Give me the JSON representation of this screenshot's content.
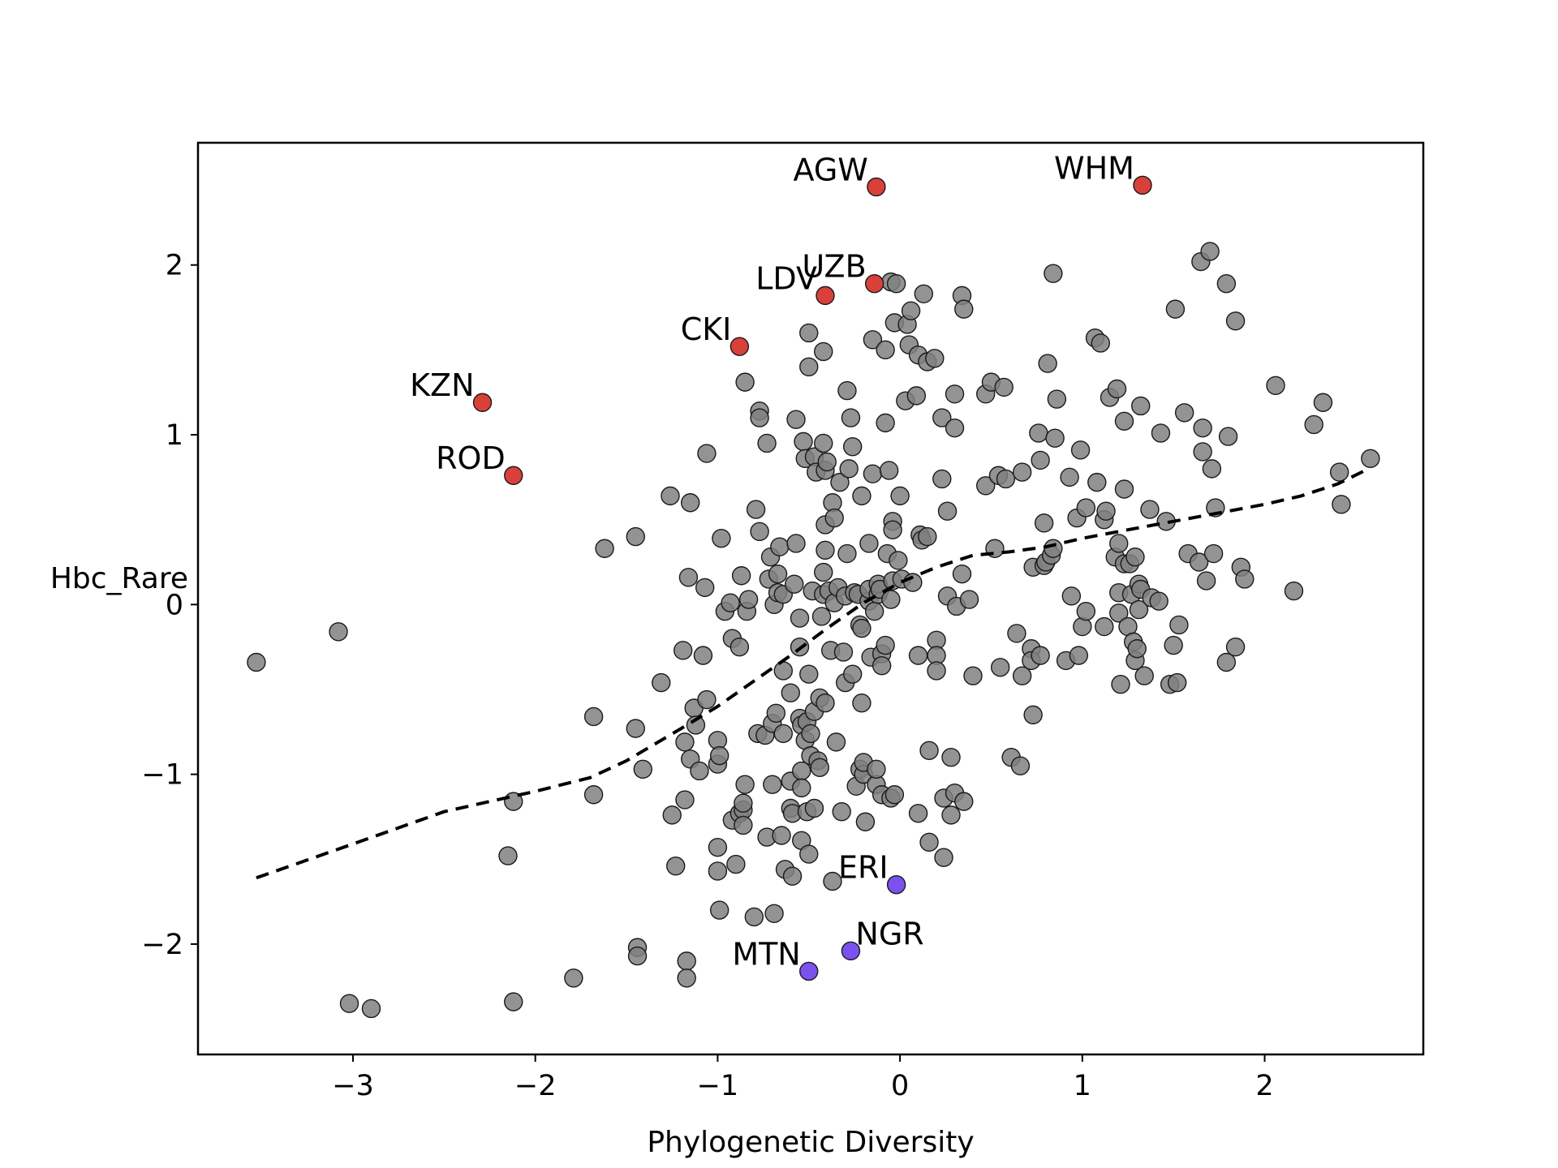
{
  "chart_data": {
    "type": "scatter",
    "xlabel": "Phylogenetic Diversity",
    "ylabel": "Hbc_Rare",
    "xlim": [
      -3.85,
      2.87
    ],
    "ylim": [
      -2.65,
      2.72
    ],
    "xticks": [
      -3,
      -2,
      -1,
      0,
      1,
      2
    ],
    "yticks": [
      -2,
      -1,
      0,
      1,
      2
    ],
    "xtick_labels": [
      "−3",
      "−2",
      "−1",
      "0",
      "1",
      "2"
    ],
    "ytick_labels": [
      "−2",
      "−1",
      "0",
      "1",
      "2"
    ],
    "grid": false,
    "legend": "none",
    "colors": {
      "background_points": "#808080",
      "high_points": "#d9403a",
      "low_points": "#7b52f0",
      "trend_line": "#000000",
      "point_edge": "#1a1a1a"
    },
    "highlighted": [
      {
        "label": "AGW",
        "x": -0.13,
        "y": 2.46,
        "group": "high"
      },
      {
        "label": "WHM",
        "x": 1.33,
        "y": 2.47,
        "group": "high"
      },
      {
        "label": "UZB",
        "x": -0.14,
        "y": 1.89,
        "group": "high"
      },
      {
        "label": "LDV",
        "x": -0.41,
        "y": 1.82,
        "group": "high"
      },
      {
        "label": "CKI",
        "x": -0.88,
        "y": 1.52,
        "group": "high"
      },
      {
        "label": "KZN",
        "x": -2.29,
        "y": 1.19,
        "group": "high"
      },
      {
        "label": "ROD",
        "x": -2.12,
        "y": 0.76,
        "group": "high"
      },
      {
        "label": "ERI",
        "x": -0.02,
        "y": -1.65,
        "group": "low"
      },
      {
        "label": "NGR",
        "x": -0.27,
        "y": -2.04,
        "group": "low"
      },
      {
        "label": "MTN",
        "x": -0.5,
        "y": -2.16,
        "group": "low"
      }
    ],
    "trend": {
      "style": "dashed",
      "x": [
        -3.53,
        -3.0,
        -2.5,
        -2.0,
        -1.7,
        -1.5,
        -1.2,
        -1.0,
        -0.8,
        -0.6,
        -0.4,
        -0.2,
        0.0,
        0.2,
        0.4,
        0.6,
        0.8,
        1.0,
        1.2,
        1.4,
        1.6,
        1.8,
        2.0,
        2.2,
        2.4,
        2.57
      ],
      "y": [
        -1.61,
        -1.41,
        -1.22,
        -1.1,
        -1.02,
        -0.92,
        -0.73,
        -0.6,
        -0.45,
        -0.3,
        -0.14,
        0.01,
        0.13,
        0.22,
        0.29,
        0.31,
        0.34,
        0.39,
        0.43,
        0.47,
        0.51,
        0.55,
        0.59,
        0.64,
        0.71,
        0.8
      ]
    },
    "points": [
      [
        -3.53,
        -0.34
      ],
      [
        -3.08,
        -0.16
      ],
      [
        -3.02,
        -2.35
      ],
      [
        -2.9,
        -2.38
      ],
      [
        -2.12,
        -2.34
      ],
      [
        -2.15,
        -1.48
      ],
      [
        -2.12,
        -1.16
      ],
      [
        -1.79,
        -2.2
      ],
      [
        -1.68,
        -1.12
      ],
      [
        -1.68,
        -0.66
      ],
      [
        -1.62,
        0.33
      ],
      [
        -1.45,
        0.4
      ],
      [
        -1.45,
        -0.73
      ],
      [
        -1.44,
        -2.02
      ],
      [
        -1.44,
        -2.07
      ],
      [
        -1.41,
        -0.97
      ],
      [
        -1.31,
        -0.46
      ],
      [
        -1.26,
        0.64
      ],
      [
        -1.25,
        -1.24
      ],
      [
        -1.23,
        -1.54
      ],
      [
        -1.19,
        -0.27
      ],
      [
        -1.18,
        -0.81
      ],
      [
        -1.18,
        -1.15
      ],
      [
        -1.17,
        -2.1
      ],
      [
        -1.17,
        -2.2
      ],
      [
        -1.16,
        0.16
      ],
      [
        -1.15,
        0.6
      ],
      [
        -1.15,
        -0.91
      ],
      [
        -1.13,
        -0.61
      ],
      [
        -1.12,
        -0.71
      ],
      [
        -1.1,
        -0.98
      ],
      [
        -1.08,
        -0.3
      ],
      [
        -1.07,
        0.1
      ],
      [
        -1.06,
        -0.56
      ],
      [
        -1.06,
        0.89
      ],
      [
        -1.0,
        -0.8
      ],
      [
        -1.0,
        -0.94
      ],
      [
        -0.99,
        -0.89
      ],
      [
        -1.0,
        -1.43
      ],
      [
        -1.0,
        -1.57
      ],
      [
        -0.99,
        -1.8
      ],
      [
        -0.98,
        0.39
      ],
      [
        -0.96,
        -0.04
      ],
      [
        -0.93,
        0.01
      ],
      [
        -0.92,
        -1.27
      ],
      [
        -0.92,
        -0.2
      ],
      [
        -0.9,
        -1.53
      ],
      [
        -0.88,
        -1.23
      ],
      [
        -0.88,
        -0.25
      ],
      [
        -0.87,
        0.17
      ],
      [
        -0.86,
        -1.21
      ],
      [
        -0.86,
        -1.3
      ],
      [
        -0.86,
        -1.17
      ],
      [
        -0.85,
        1.31
      ],
      [
        -0.85,
        -1.06
      ],
      [
        -0.84,
        -0.04
      ],
      [
        -0.83,
        0.03
      ],
      [
        -0.8,
        -1.84
      ],
      [
        -0.79,
        0.56
      ],
      [
        -0.78,
        -0.76
      ],
      [
        -0.77,
        1.14
      ],
      [
        -0.77,
        0.43
      ],
      [
        -0.77,
        1.1
      ],
      [
        -0.74,
        -0.77
      ],
      [
        -0.73,
        0.95
      ],
      [
        -0.73,
        -1.37
      ],
      [
        -0.72,
        0.15
      ],
      [
        -0.71,
        0.28
      ],
      [
        -0.7,
        -1.06
      ],
      [
        -0.7,
        -0.7
      ],
      [
        -0.69,
        -1.82
      ],
      [
        -0.69,
        0.0
      ],
      [
        -0.68,
        -0.64
      ],
      [
        -0.67,
        0.07
      ],
      [
        -0.67,
        0.18
      ],
      [
        -0.66,
        0.34
      ],
      [
        -0.65,
        -1.36
      ],
      [
        -0.64,
        -0.39
      ],
      [
        -0.64,
        0.06
      ],
      [
        -0.64,
        -0.76
      ],
      [
        -0.63,
        -1.56
      ],
      [
        -0.6,
        -0.52
      ],
      [
        -0.6,
        -1.04
      ],
      [
        -0.6,
        -1.2
      ],
      [
        -0.59,
        -1.23
      ],
      [
        -0.59,
        -1.6
      ],
      [
        -0.58,
        0.12
      ],
      [
        -0.57,
        1.09
      ],
      [
        -0.57,
        0.36
      ],
      [
        -0.55,
        -0.25
      ],
      [
        -0.55,
        -0.08
      ],
      [
        -0.55,
        -0.67
      ],
      [
        -0.54,
        -0.71
      ],
      [
        -0.54,
        -0.98
      ],
      [
        -0.54,
        -1.08
      ],
      [
        -0.54,
        -1.39
      ],
      [
        -0.53,
        0.96
      ],
      [
        -0.52,
        0.86
      ],
      [
        -0.52,
        -0.8
      ],
      [
        -0.51,
        -1.22
      ],
      [
        -0.51,
        -0.69
      ],
      [
        -0.5,
        -0.41
      ],
      [
        -0.5,
        -1.47
      ],
      [
        -0.5,
        1.4
      ],
      [
        -0.5,
        1.6
      ],
      [
        -0.49,
        -0.89
      ],
      [
        -0.49,
        -0.76
      ],
      [
        -0.48,
        0.08
      ],
      [
        -0.47,
        0.87
      ],
      [
        -0.47,
        -0.63
      ],
      [
        -0.47,
        -1.2
      ],
      [
        -0.46,
        0.78
      ],
      [
        -0.45,
        -0.92
      ],
      [
        -0.44,
        -0.55
      ],
      [
        -0.44,
        -0.96
      ],
      [
        -0.43,
        -0.07
      ],
      [
        -0.42,
        0.06
      ],
      [
        -0.42,
        0.19
      ],
      [
        -0.42,
        0.95
      ],
      [
        -0.42,
        1.49
      ],
      [
        -0.41,
        0.47
      ],
      [
        -0.41,
        -0.58
      ],
      [
        -0.41,
        0.32
      ],
      [
        -0.41,
        0.79
      ],
      [
        -0.4,
        0.84
      ],
      [
        -0.39,
        0.08
      ],
      [
        -0.38,
        -0.27
      ],
      [
        -0.37,
        -1.63
      ],
      [
        -0.37,
        0.6
      ],
      [
        -0.36,
        0.51
      ],
      [
        -0.36,
        0.01
      ],
      [
        -0.35,
        -0.81
      ],
      [
        -0.34,
        0.1
      ],
      [
        -0.33,
        0.72
      ],
      [
        -0.32,
        -1.22
      ],
      [
        -0.31,
        -0.28
      ],
      [
        -0.3,
        0.05
      ],
      [
        -0.3,
        -0.46
      ],
      [
        -0.29,
        1.26
      ],
      [
        -0.29,
        0.3
      ],
      [
        -0.28,
        0.8
      ],
      [
        -0.27,
        1.1
      ],
      [
        -0.26,
        0.93
      ],
      [
        -0.26,
        -0.41
      ],
      [
        -0.25,
        0.07
      ],
      [
        -0.24,
        -1.07
      ],
      [
        -0.23,
        0.06
      ],
      [
        -0.22,
        -0.97
      ],
      [
        -0.22,
        -0.12
      ],
      [
        -0.21,
        -0.58
      ],
      [
        -0.21,
        0.64
      ],
      [
        -0.21,
        -0.14
      ],
      [
        -0.2,
        -1.0
      ],
      [
        -0.2,
        -0.93
      ],
      [
        -0.19,
        -1.28
      ],
      [
        -0.17,
        0.02
      ],
      [
        -0.17,
        0.09
      ],
      [
        -0.17,
        0.36
      ],
      [
        -0.16,
        -0.31
      ],
      [
        -0.15,
        1.56
      ],
      [
        -0.15,
        0.77
      ],
      [
        -0.14,
        -0.04
      ],
      [
        -0.13,
        -1.06
      ],
      [
        -0.13,
        -0.97
      ],
      [
        -0.12,
        0.06
      ],
      [
        -0.12,
        0.12
      ],
      [
        -0.11,
        0.09
      ],
      [
        -0.1,
        -1.12
      ],
      [
        -0.1,
        -0.29
      ],
      [
        -0.1,
        -0.36
      ],
      [
        -0.08,
        1.07
      ],
      [
        -0.08,
        1.5
      ],
      [
        -0.08,
        -0.24
      ],
      [
        -0.07,
        0.3
      ],
      [
        -0.06,
        0.79
      ],
      [
        -0.05,
        1.9
      ],
      [
        -0.05,
        0.03
      ],
      [
        -0.05,
        -1.14
      ],
      [
        -0.04,
        0.49
      ],
      [
        -0.04,
        0.14
      ],
      [
        -0.04,
        0.44
      ],
      [
        -0.03,
        1.66
      ],
      [
        -0.03,
        -1.12
      ],
      [
        -0.02,
        1.89
      ],
      [
        -0.01,
        0.26
      ],
      [
        0.0,
        0.64
      ],
      [
        0.01,
        0.15
      ],
      [
        0.03,
        1.2
      ],
      [
        0.04,
        1.65
      ],
      [
        0.05,
        1.53
      ],
      [
        0.06,
        1.73
      ],
      [
        0.07,
        0.13
      ],
      [
        0.09,
        1.23
      ],
      [
        0.1,
        1.47
      ],
      [
        0.1,
        -0.3
      ],
      [
        0.1,
        -1.23
      ],
      [
        0.11,
        0.41
      ],
      [
        0.12,
        0.38
      ],
      [
        0.13,
        1.83
      ],
      [
        0.15,
        0.4
      ],
      [
        0.15,
        1.43
      ],
      [
        0.16,
        -0.86
      ],
      [
        0.16,
        -1.4
      ],
      [
        0.19,
        1.45
      ],
      [
        0.2,
        -0.21
      ],
      [
        0.2,
        -0.3
      ],
      [
        0.2,
        -0.39
      ],
      [
        0.23,
        0.74
      ],
      [
        0.23,
        1.1
      ],
      [
        0.24,
        -1.14
      ],
      [
        0.24,
        -1.49
      ],
      [
        0.26,
        0.05
      ],
      [
        0.26,
        0.55
      ],
      [
        0.28,
        -0.9
      ],
      [
        0.28,
        -1.24
      ],
      [
        0.3,
        1.24
      ],
      [
        0.3,
        1.04
      ],
      [
        0.3,
        -1.11
      ],
      [
        0.31,
        -0.01
      ],
      [
        0.34,
        1.82
      ],
      [
        0.34,
        0.18
      ],
      [
        0.35,
        1.74
      ],
      [
        0.35,
        -1.16
      ],
      [
        0.38,
        0.03
      ],
      [
        0.4,
        -0.42
      ],
      [
        0.47,
        1.24
      ],
      [
        0.47,
        0.7
      ],
      [
        0.5,
        1.31
      ],
      [
        0.52,
        0.33
      ],
      [
        0.54,
        0.76
      ],
      [
        0.55,
        -0.37
      ],
      [
        0.57,
        1.28
      ],
      [
        0.58,
        0.74
      ],
      [
        0.61,
        -0.9
      ],
      [
        0.64,
        -0.17
      ],
      [
        0.66,
        -0.95
      ],
      [
        0.67,
        0.78
      ],
      [
        0.67,
        -0.42
      ],
      [
        0.72,
        -0.26
      ],
      [
        0.72,
        -0.33
      ],
      [
        0.73,
        -0.65
      ],
      [
        0.73,
        0.22
      ],
      [
        0.76,
        1.01
      ],
      [
        0.77,
        -0.3
      ],
      [
        0.77,
        0.85
      ],
      [
        0.79,
        0.23
      ],
      [
        0.79,
        0.48
      ],
      [
        0.8,
        0.25
      ],
      [
        0.81,
        1.42
      ],
      [
        0.83,
        0.29
      ],
      [
        0.84,
        0.33
      ],
      [
        0.84,
        1.95
      ],
      [
        0.85,
        0.98
      ],
      [
        0.86,
        1.21
      ],
      [
        0.91,
        -0.33
      ],
      [
        0.93,
        0.75
      ],
      [
        0.94,
        0.05
      ],
      [
        0.97,
        0.51
      ],
      [
        0.98,
        -0.3
      ],
      [
        0.99,
        0.91
      ],
      [
        1.0,
        -0.13
      ],
      [
        1.02,
        -0.04
      ],
      [
        1.02,
        0.57
      ],
      [
        1.07,
        1.57
      ],
      [
        1.08,
        0.72
      ],
      [
        1.1,
        1.54
      ],
      [
        1.12,
        -0.13
      ],
      [
        1.12,
        0.5
      ],
      [
        1.13,
        0.55
      ],
      [
        1.15,
        1.22
      ],
      [
        1.18,
        0.28
      ],
      [
        1.19,
        1.27
      ],
      [
        1.2,
        0.07
      ],
      [
        1.2,
        -0.05
      ],
      [
        1.2,
        0.36
      ],
      [
        1.21,
        -0.47
      ],
      [
        1.23,
        0.68
      ],
      [
        1.23,
        0.24
      ],
      [
        1.23,
        1.08
      ],
      [
        1.25,
        -0.13
      ],
      [
        1.26,
        0.24
      ],
      [
        1.27,
        0.06
      ],
      [
        1.28,
        -0.22
      ],
      [
        1.29,
        0.28
      ],
      [
        1.29,
        -0.33
      ],
      [
        1.3,
        -0.26
      ],
      [
        1.31,
        0.12
      ],
      [
        1.31,
        -0.03
      ],
      [
        1.32,
        1.17
      ],
      [
        1.32,
        0.09
      ],
      [
        1.34,
        -0.42
      ],
      [
        1.37,
        0.56
      ],
      [
        1.38,
        0.04
      ],
      [
        1.42,
        0.02
      ],
      [
        1.43,
        1.01
      ],
      [
        1.46,
        0.49
      ],
      [
        1.48,
        -0.47
      ],
      [
        1.5,
        -0.24
      ],
      [
        1.51,
        1.74
      ],
      [
        1.52,
        -0.46
      ],
      [
        1.53,
        -0.12
      ],
      [
        1.56,
        1.13
      ],
      [
        1.58,
        0.3
      ],
      [
        1.64,
        0.25
      ],
      [
        1.65,
        2.02
      ],
      [
        1.66,
        1.04
      ],
      [
        1.66,
        0.9
      ],
      [
        1.68,
        0.14
      ],
      [
        1.7,
        2.08
      ],
      [
        1.71,
        0.8
      ],
      [
        1.72,
        0.3
      ],
      [
        1.73,
        0.57
      ],
      [
        1.79,
        1.89
      ],
      [
        1.79,
        -0.34
      ],
      [
        1.8,
        0.99
      ],
      [
        1.84,
        1.67
      ],
      [
        1.84,
        -0.25
      ],
      [
        1.87,
        0.22
      ],
      [
        1.89,
        0.15
      ],
      [
        2.06,
        1.29
      ],
      [
        2.16,
        0.08
      ],
      [
        2.27,
        1.06
      ],
      [
        2.32,
        1.19
      ],
      [
        2.41,
        0.78
      ],
      [
        2.42,
        0.59
      ],
      [
        2.58,
        0.86
      ]
    ]
  }
}
